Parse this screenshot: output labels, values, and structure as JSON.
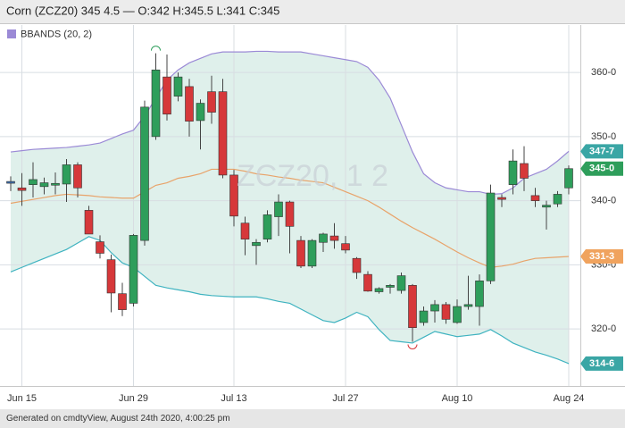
{
  "chart_data": {
    "type": "candlestick",
    "title": "Corn (ZCZ20) 345 4.5 — O:342 H:345.5 L:341 C:345",
    "watermark": "ZCZ20, 1 2",
    "footer": "Generated on cmdtyView, August 24th 2020, 4:00:25 pm",
    "categories": [
      null,
      "Jun 15",
      null,
      null,
      null,
      null,
      null,
      null,
      null,
      null,
      null,
      "Jun 29",
      null,
      null,
      null,
      null,
      null,
      null,
      null,
      null,
      "Jul 13",
      null,
      null,
      null,
      null,
      null,
      null,
      null,
      null,
      null,
      "Jul 27",
      null,
      null,
      null,
      null,
      null,
      null,
      null,
      null,
      null,
      "Aug 10",
      null,
      null,
      null,
      null,
      null,
      null,
      null,
      null,
      null,
      "Aug 24"
    ],
    "candles": {
      "up_color": "#2e9e5b",
      "down_color": "#d6383a",
      "flat_color": "#3a6fb0",
      "open": [
        343.0,
        342.0,
        342.5,
        342.2,
        342.5,
        342.6,
        345.6,
        338.5,
        333.6,
        330.8,
        325.5,
        324.0,
        333.8,
        350.0,
        359.3,
        356.3,
        357.8,
        352.5,
        357.0,
        357.0,
        344.0,
        336.5,
        333.0,
        334.0,
        337.5,
        339.8,
        333.8,
        329.8,
        333.5,
        334.5,
        333.3,
        331.0,
        328.5,
        325.8,
        326.5,
        326.0,
        326.8,
        321.0,
        322.8,
        323.8,
        321.0,
        323.5,
        323.5,
        327.5,
        340.5,
        342.5,
        345.8,
        340.8,
        339.0,
        339.5,
        342.0
      ],
      "high": [
        343.8,
        344.3,
        346.0,
        343.6,
        344.4,
        346.5,
        346.0,
        339.2,
        334.6,
        331.6,
        327.2,
        334.8,
        355.6,
        363.0,
        362.8,
        360.0,
        359.0,
        355.8,
        359.5,
        359.0,
        344.8,
        337.5,
        334.0,
        338.5,
        341.0,
        340.0,
        334.5,
        334.0,
        335.0,
        336.5,
        334.5,
        331.2,
        329.0,
        326.5,
        327.0,
        328.8,
        327.0,
        323.5,
        324.5,
        324.2,
        324.6,
        328.3,
        328.5,
        342.5,
        341.0,
        348.0,
        348.5,
        342.0,
        340.0,
        341.5,
        345.5
      ],
      "low": [
        341.5,
        339.2,
        340.5,
        341.0,
        341.0,
        339.8,
        340.5,
        334.8,
        331.0,
        322.6,
        322.0,
        323.5,
        333.0,
        349.5,
        352.5,
        355.5,
        350.0,
        348.0,
        352.0,
        343.5,
        336.0,
        331.5,
        330.0,
        333.5,
        334.5,
        331.8,
        329.5,
        329.5,
        332.0,
        332.5,
        331.8,
        327.8,
        325.8,
        325.5,
        325.5,
        325.5,
        318.0,
        320.5,
        321.0,
        320.8,
        320.8,
        323.0,
        320.5,
        327.0,
        339.0,
        341.0,
        341.5,
        339.0,
        335.5,
        339.0,
        341.0
      ],
      "close": [
        343.0,
        341.6,
        343.3,
        342.8,
        342.7,
        345.6,
        342.0,
        334.8,
        331.8,
        325.6,
        323.0,
        334.6,
        354.6,
        360.4,
        353.5,
        359.3,
        352.4,
        355.2,
        353.8,
        344.0,
        337.6,
        334.0,
        333.5,
        337.8,
        339.8,
        336.0,
        329.8,
        333.8,
        334.8,
        333.8,
        332.3,
        328.8,
        325.9,
        326.3,
        326.8,
        328.3,
        320.2,
        322.8,
        323.8,
        321.5,
        323.5,
        323.8,
        327.5,
        341.2,
        340.2,
        346.2,
        343.5,
        340.0,
        339.3,
        341.0,
        345.0
      ]
    },
    "bands": {
      "name": "BBANDS (20, 2)",
      "legend_color": "#9b8ad6",
      "fill": "#d9ede8",
      "upper_color": "#9b8ad6",
      "middle_color": "#e8a36a",
      "lower_color": "#3fb3c0",
      "upper": [
        347.6,
        347.8,
        348.0,
        348.1,
        348.2,
        348.3,
        348.5,
        348.7,
        349.0,
        349.7,
        350.4,
        351.0,
        353.2,
        356.0,
        358.8,
        360.4,
        361.5,
        362.2,
        362.9,
        363.2,
        363.2,
        363.2,
        363.3,
        363.3,
        363.2,
        363.2,
        363.2,
        362.9,
        362.6,
        362.3,
        362.0,
        361.7,
        360.8,
        358.8,
        356.0,
        351.8,
        347.6,
        344.2,
        342.8,
        342.0,
        341.7,
        341.4,
        341.4,
        341.0,
        341.1,
        342.0,
        343.5,
        344.2,
        344.9,
        346.2,
        347.7
      ],
      "middle": [
        339.6,
        339.9,
        340.2,
        340.5,
        340.8,
        341.0,
        340.9,
        340.8,
        340.6,
        340.5,
        340.4,
        340.4,
        341.4,
        342.4,
        342.8,
        343.5,
        343.8,
        344.2,
        344.9,
        344.9,
        344.9,
        344.6,
        344.2,
        344.0,
        343.7,
        343.5,
        343.2,
        343.0,
        342.8,
        342.1,
        341.4,
        340.7,
        340.0,
        339.0,
        337.9,
        336.8,
        335.8,
        334.9,
        334.0,
        333.0,
        332.0,
        331.1,
        330.3,
        329.6,
        329.8,
        330.1,
        330.6,
        331.0,
        331.1,
        331.2,
        331.3
      ],
      "lower": [
        328.9,
        329.6,
        330.3,
        331.0,
        331.7,
        332.4,
        333.4,
        334.4,
        333.8,
        331.9,
        330.3,
        329.6,
        328.2,
        326.8,
        326.4,
        326.1,
        325.8,
        325.4,
        325.2,
        325.1,
        325.0,
        325.0,
        325.0,
        324.7,
        324.3,
        324.0,
        323.1,
        322.2,
        321.3,
        321.0,
        321.7,
        322.6,
        321.9,
        319.9,
        318.2,
        318.0,
        317.8,
        318.7,
        319.6,
        319.2,
        318.8,
        319.0,
        319.2,
        319.9,
        318.9,
        317.8,
        317.1,
        316.4,
        315.9,
        315.3,
        314.6
      ]
    },
    "price_labels": [
      {
        "value": 347.7,
        "label": "347-7",
        "color": "#3aa6a5"
      },
      {
        "value": 345,
        "label": "345-0",
        "color": "#2e9e5b"
      },
      {
        "value": 331.3,
        "label": "331-3",
        "color": "#f0a35e"
      },
      {
        "value": 314.6,
        "label": "314-6",
        "color": "#3aa6a5"
      }
    ],
    "ylim": [
      311.1,
      367.4
    ],
    "yticks": [
      {
        "value": 320,
        "label": "320-0"
      },
      {
        "value": 330,
        "label": "330-0"
      },
      {
        "value": 340,
        "label": "340-0"
      },
      {
        "value": 350,
        "label": "350-0"
      },
      {
        "value": 360,
        "label": "360-0"
      }
    ],
    "grid": true
  }
}
